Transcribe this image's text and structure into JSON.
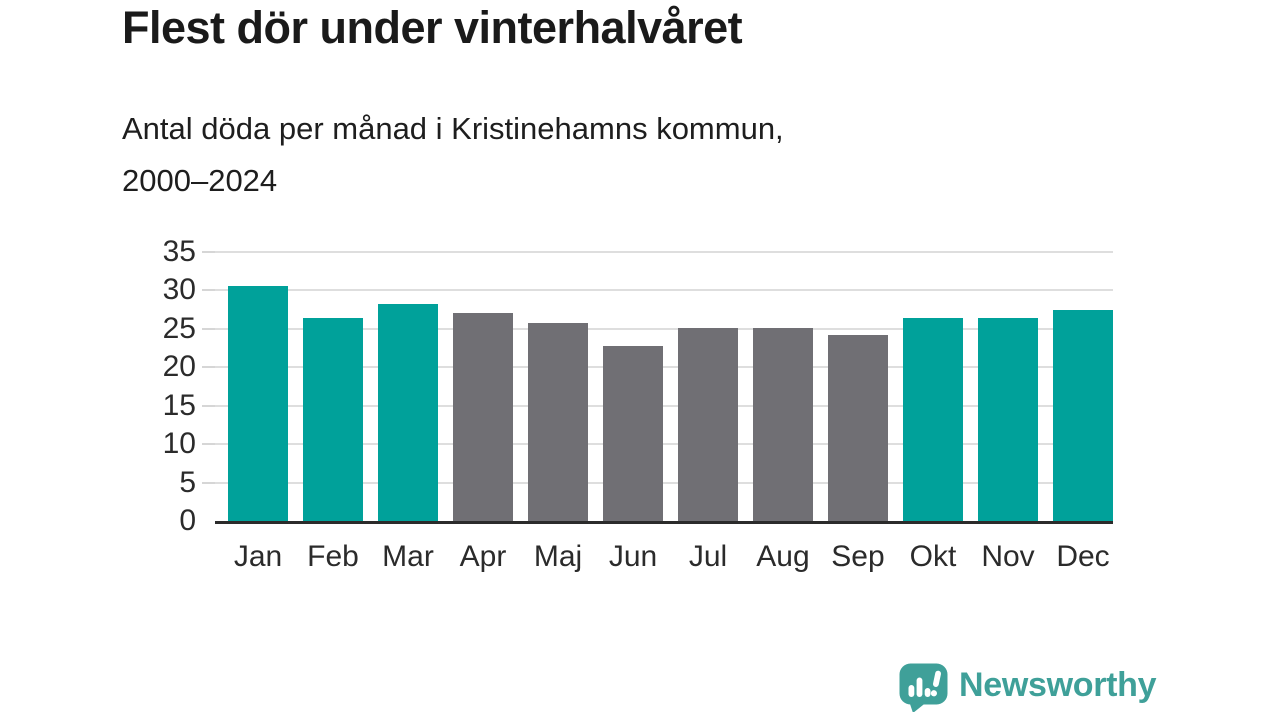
{
  "header": {
    "title": "Flest dör under vinterhalvåret",
    "subtitle_line1": "Antal döda per månad i Kristinehamns kommun,",
    "subtitle_line2": "2000–2024"
  },
  "chart_data": {
    "type": "bar",
    "title": "Flest dör under vinterhalvåret",
    "subtitle": "Antal döda per månad i Kristinehamns kommun, 2000–2024",
    "categories": [
      "Jan",
      "Feb",
      "Mar",
      "Apr",
      "Maj",
      "Jun",
      "Jul",
      "Aug",
      "Sep",
      "Okt",
      "Nov",
      "Dec"
    ],
    "values": [
      30.6,
      26.4,
      28.3,
      27.1,
      25.7,
      22.8,
      25.1,
      25.1,
      24.2,
      26.4,
      26.4,
      27.4
    ],
    "groups": [
      "winter",
      "winter",
      "winter",
      "summer",
      "summer",
      "summer",
      "summer",
      "summer",
      "summer",
      "winter",
      "winter",
      "winter"
    ],
    "colors": {
      "winter": "#00a19a",
      "summer": "#706f74"
    },
    "xlabel": "",
    "ylabel": "",
    "ylim": [
      0,
      35
    ],
    "yticks": [
      0,
      5,
      10,
      15,
      20,
      25,
      30,
      35
    ],
    "grid": "horizontal",
    "legend": "none"
  },
  "footer": {
    "brand": "Newsworthy",
    "brand_color": "#3fa099"
  }
}
